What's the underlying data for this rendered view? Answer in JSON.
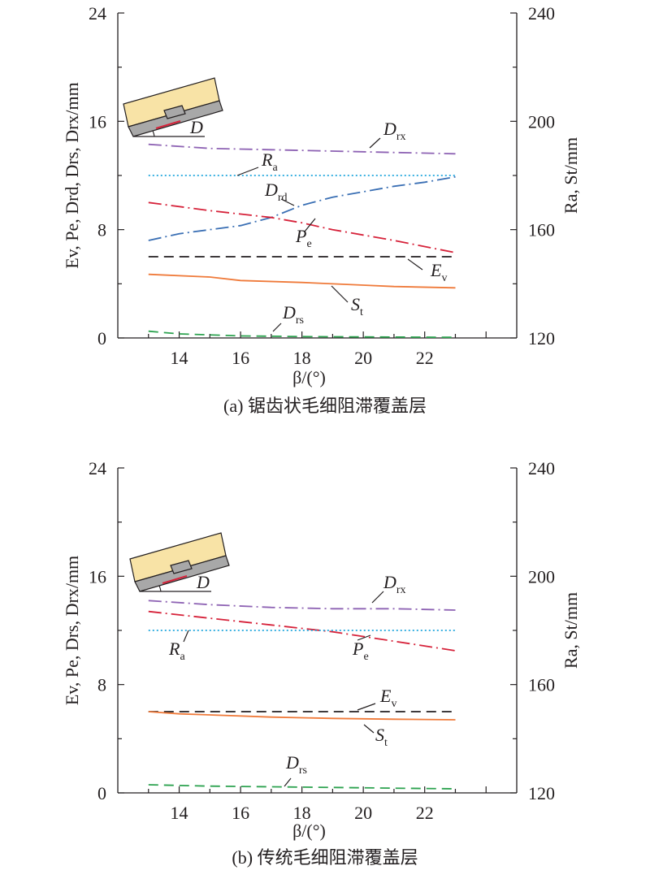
{
  "colors": {
    "axis": "#231f20",
    "Dr_purple": "#8e63b4",
    "Ra_cyan": "#1fa6dd",
    "Drd_blue": "#3a6fb4",
    "Pe_red": "#d6223a",
    "Ev_black": "#231f20",
    "St_orange": "#ef7a3a",
    "Drs_green": "#2ca24f",
    "inset_fill": "#f8e3a6",
    "inset_gray": "#a8a8a8"
  },
  "chart_data": [
    {
      "type": "line",
      "id": "a",
      "caption": "(a) 锯齿状毛细阻滞覆盖层",
      "xlabel": "β/(°)",
      "ylabel_left": "Ev, Pe, Drd, Drs, Drx/mm",
      "ylabel_right": "Ra, St/mm",
      "xlim": [
        12,
        25
      ],
      "ylim_left": [
        0,
        24
      ],
      "ylim_right": [
        120,
        240
      ],
      "xticks": [
        "14",
        "16",
        "18",
        "20",
        "22"
      ],
      "yticks_left": [
        "0",
        "8",
        "16",
        "24"
      ],
      "yticks_right": [
        "120",
        "160",
        "200",
        "240"
      ],
      "inset_label": "D",
      "series": [
        {
          "name": "Drx",
          "axis": "left",
          "style": "dashdot",
          "color": "#8e63b4",
          "x": [
            13,
            15,
            17,
            19,
            21,
            23
          ],
          "y": [
            14.3,
            14.0,
            13.9,
            13.8,
            13.7,
            13.6
          ]
        },
        {
          "name": "Ra",
          "axis": "right",
          "style": "dotted",
          "color": "#1fa6dd",
          "x": [
            13,
            23
          ],
          "y": [
            180,
            180
          ]
        },
        {
          "name": "Drd",
          "axis": "left",
          "style": "dashdot",
          "color": "#3a6fb4",
          "x": [
            13,
            14,
            16,
            17,
            18,
            19,
            20,
            21,
            22,
            23
          ],
          "y": [
            7.2,
            7.7,
            8.3,
            8.9,
            9.8,
            10.4,
            10.8,
            11.2,
            11.5,
            11.9
          ]
        },
        {
          "name": "Pe",
          "axis": "left",
          "style": "dashdot",
          "color": "#d6223a",
          "x": [
            13,
            15,
            17,
            18,
            19,
            21,
            23
          ],
          "y": [
            10.0,
            9.4,
            8.9,
            8.5,
            8.0,
            7.2,
            6.3
          ]
        },
        {
          "name": "Ev",
          "axis": "left",
          "style": "dashed",
          "color": "#231f20",
          "x": [
            13,
            23
          ],
          "y": [
            6.0,
            6.0
          ]
        },
        {
          "name": "St",
          "axis": "right",
          "style": "solid",
          "color": "#ef7a3a",
          "x": [
            13,
            15,
            16,
            18,
            20,
            21,
            23
          ],
          "y": [
            143.5,
            142.5,
            141.2,
            140.5,
            139.5,
            139.0,
            138.5
          ]
        },
        {
          "name": "Drs",
          "axis": "left",
          "style": "dashed",
          "color": "#2ca24f",
          "x": [
            13,
            14,
            16,
            18,
            20,
            23
          ],
          "y": [
            0.5,
            0.3,
            0.15,
            0.1,
            0.08,
            0.05
          ]
        }
      ],
      "labels": {
        "Drx": {
          "main": "D",
          "sub": "rx"
        },
        "Ra": {
          "main": "R",
          "sub": "a"
        },
        "Drd": {
          "main": "D",
          "sub": "rd"
        },
        "Pe": {
          "main": "P",
          "sub": "e"
        },
        "Ev": {
          "main": "E",
          "sub": "v"
        },
        "St": {
          "main": "S",
          "sub": "t"
        },
        "Drs": {
          "main": "D",
          "sub": "rs"
        }
      }
    },
    {
      "type": "line",
      "id": "b",
      "caption": "(b) 传统毛细阻滞覆盖层",
      "xlabel": "β/(°)",
      "ylabel_left": "Ev, Pe, Drs, Drx/mm",
      "ylabel_right": "Ra, St/mm",
      "xlim": [
        12,
        25
      ],
      "ylim_left": [
        0,
        24
      ],
      "ylim_right": [
        120,
        240
      ],
      "xticks": [
        "14",
        "16",
        "18",
        "20",
        "22"
      ],
      "yticks_left": [
        "0",
        "8",
        "16",
        "24"
      ],
      "yticks_right": [
        "120",
        "160",
        "200",
        "240"
      ],
      "inset_label": "D",
      "series": [
        {
          "name": "Drx",
          "axis": "left",
          "style": "dashdot",
          "color": "#8e63b4",
          "x": [
            13,
            15,
            17,
            19,
            21,
            23
          ],
          "y": [
            14.2,
            13.9,
            13.7,
            13.6,
            13.6,
            13.5
          ]
        },
        {
          "name": "Pe",
          "axis": "left",
          "style": "dashdot",
          "color": "#d6223a",
          "x": [
            13,
            15,
            17,
            19,
            21,
            23
          ],
          "y": [
            13.4,
            12.9,
            12.4,
            11.9,
            11.2,
            10.5
          ]
        },
        {
          "name": "Ra",
          "axis": "right",
          "style": "dotted",
          "color": "#1fa6dd",
          "x": [
            13,
            23
          ],
          "y": [
            180,
            180
          ]
        },
        {
          "name": "Ev",
          "axis": "left",
          "style": "dashed",
          "color": "#231f20",
          "x": [
            13,
            23
          ],
          "y": [
            6.0,
            6.0
          ]
        },
        {
          "name": "St",
          "axis": "right",
          "style": "solid",
          "color": "#ef7a3a",
          "x": [
            13,
            14,
            15,
            17,
            19,
            21,
            23
          ],
          "y": [
            150.0,
            149.2,
            148.8,
            148.0,
            147.5,
            147.2,
            147.0
          ]
        },
        {
          "name": "Drs",
          "axis": "left",
          "style": "dashed",
          "color": "#2ca24f",
          "x": [
            13,
            15,
            17,
            19,
            21,
            23
          ],
          "y": [
            0.6,
            0.5,
            0.45,
            0.4,
            0.35,
            0.3
          ]
        }
      ],
      "labels": {
        "Drx": {
          "main": "D",
          "sub": "rx"
        },
        "Pe": {
          "main": "P",
          "sub": "e"
        },
        "Ra": {
          "main": "R",
          "sub": "a"
        },
        "Ev": {
          "main": "E",
          "sub": "v"
        },
        "St": {
          "main": "S",
          "sub": "t"
        },
        "Drs": {
          "main": "D",
          "sub": "rs"
        }
      }
    }
  ]
}
